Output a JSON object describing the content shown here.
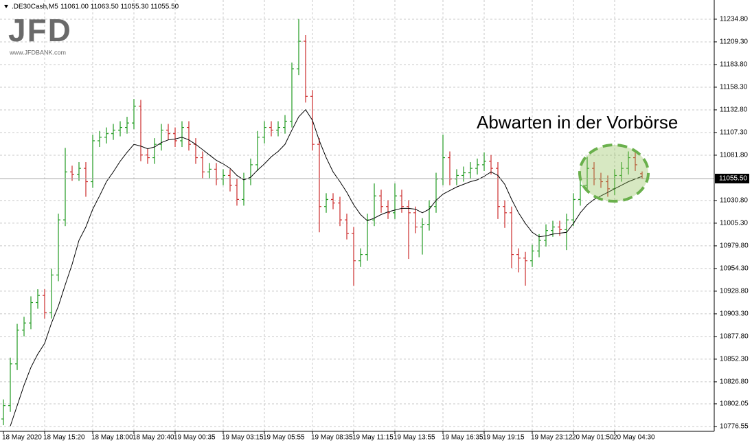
{
  "chart_data": {
    "type": "ohlc",
    "symbol": ".DE30Cash,M5",
    "ohlc_header": "11061.00 11063.50 11055.30 11055.50",
    "logo": "JFD",
    "logo_url": "www.JFDBANK.com",
    "annotation": "Abwarten in der Vorbörse",
    "categories": [
      "18 May 2020",
      null,
      null,
      null,
      null,
      null,
      "18 May 15:20",
      null,
      null,
      null,
      null,
      null,
      null,
      "18 May 18:00",
      null,
      null,
      null,
      null,
      null,
      "18 May 20:40",
      null,
      null,
      null,
      null,
      null,
      "19 May 00:35",
      null,
      null,
      null,
      null,
      null,
      null,
      "19 May 03:15",
      null,
      null,
      null,
      null,
      null,
      "19 May 05:55",
      null,
      null,
      null,
      null,
      null,
      null,
      "19 May 08:35",
      null,
      null,
      null,
      null,
      null,
      "19 May 11:15",
      null,
      null,
      null,
      null,
      null,
      "19 May 13:55",
      null,
      null,
      null,
      null,
      null,
      null,
      "19 May 16:35",
      null,
      null,
      null,
      null,
      null,
      "19 May 19:15",
      null,
      null,
      null,
      null,
      null,
      null,
      "19 May 23:12",
      null,
      null,
      null,
      null,
      null,
      "20 May 01:50",
      null,
      null,
      null,
      null,
      null,
      "20 May 04:30",
      null,
      null,
      null,
      null
    ],
    "open": [
      10785,
      10800,
      10847,
      10885,
      10893,
      10916,
      10924,
      10905,
      10947,
      11009,
      11063,
      11060,
      11067,
      11052,
      11098,
      11102,
      11106,
      11110,
      11113,
      11118,
      11137,
      11082,
      11079,
      11094,
      11110,
      11106,
      11098,
      11113,
      11094,
      11079,
      11063,
      11066,
      11055,
      11059,
      11048,
      11032,
      11055,
      11071,
      11102,
      11113,
      11110,
      11113,
      11120,
      11179,
      11210,
      11148,
      11094,
      11024,
      11032,
      11028,
      11009,
      10994,
      10963,
      10970,
      11009,
      11036,
      11024,
      11017,
      11036,
      11024,
      11017,
      11001,
      11004,
      11024,
      11055,
      11079,
      11055,
      11059,
      11062,
      11067,
      11071,
      11075,
      11067,
      11024,
      11017,
      10970,
      10966,
      10963,
      10974,
      10986,
      10997,
      11001,
      10998,
      11009,
      11032,
      11048,
      11067,
      11055,
      11052,
      11044,
      11059,
      11067,
      11079,
      11061
    ],
    "high": [
      10807,
      10854,
      10892,
      10900,
      10923,
      10931,
      10931,
      10954,
      11016,
      11090,
      11070,
      11074,
      11074,
      11105,
      11109,
      11113,
      11117,
      11120,
      11125,
      11145,
      11144,
      11089,
      11101,
      11117,
      11117,
      11113,
      11120,
      11120,
      11101,
      11086,
      11073,
      11073,
      11066,
      11066,
      11055,
      11062,
      11078,
      11109,
      11120,
      11120,
      11120,
      11127,
      11186,
      11235,
      11217,
      11155,
      11101,
      11039,
      11039,
      11035,
      11016,
      11001,
      10977,
      11016,
      11050,
      11043,
      11031,
      11050,
      11043,
      11031,
      11024,
      11011,
      11031,
      11062,
      11105,
      11086,
      11066,
      11069,
      11074,
      11078,
      11085,
      11082,
      11074,
      11031,
      11024,
      10977,
      10973,
      10981,
      10993,
      11004,
      11008,
      11008,
      11016,
      11039,
      11055,
      11080,
      11074,
      11062,
      11059,
      11066,
      11074,
      11086,
      11086,
      11063.5
    ],
    "low": [
      10778,
      10793,
      10840,
      10878,
      10886,
      10909,
      10898,
      10898,
      10940,
      11002,
      11053,
      11053,
      11035,
      11045,
      11091,
      11095,
      11099,
      11103,
      11106,
      11111,
      11075,
      11072,
      11072,
      11087,
      11099,
      11091,
      11091,
      11087,
      11072,
      11056,
      11056,
      11048,
      11048,
      11041,
      11025,
      11025,
      11048,
      11064,
      11095,
      11103,
      11103,
      11106,
      11113,
      11172,
      11141,
      11087,
      10995,
      11017,
      11021,
      11002,
      10987,
      10935,
      10956,
      10963,
      11002,
      11017,
      11010,
      11010,
      11017,
      10965,
      10994,
      10970,
      10997,
      11017,
      11048,
      11048,
      11048,
      11052,
      11055,
      11060,
      11064,
      11060,
      11010,
      11000,
      10955,
      10950,
      10935,
      10956,
      10967,
      10979,
      10990,
      10991,
      10975,
      11002,
      11025,
      11041,
      11048,
      11045,
      11035,
      11037,
      11052,
      11060,
      11064,
      11055.3
    ],
    "close": [
      10800,
      10847,
      10885,
      10893,
      10916,
      10924,
      10905,
      10947,
      11009,
      11063,
      11060,
      11067,
      11052,
      11098,
      11102,
      11106,
      11110,
      11113,
      11118,
      11137,
      11082,
      11079,
      11094,
      11110,
      11106,
      11098,
      11113,
      11094,
      11079,
      11063,
      11066,
      11055,
      11059,
      11048,
      11032,
      11055,
      11071,
      11102,
      11113,
      11110,
      11113,
      11120,
      11179,
      11210,
      11148,
      11094,
      11024,
      11032,
      11028,
      11009,
      10994,
      10963,
      10970,
      11009,
      11036,
      11024,
      11017,
      11036,
      11024,
      11017,
      11001,
      11004,
      11024,
      11055,
      11079,
      11055,
      11059,
      11062,
      11067,
      11071,
      11075,
      11067,
      11024,
      11017,
      10970,
      10966,
      10963,
      10974,
      10986,
      10997,
      11001,
      10998,
      11009,
      11032,
      11048,
      11067,
      11055,
      11052,
      11044,
      11059,
      11067,
      11079,
      11071,
      11055.5
    ],
    "up_color": "#1f9a1f",
    "down_color": "#cc2a2a",
    "ma": {
      "color": "#000000",
      "values": [
        null,
        10777,
        10800,
        10823,
        10843,
        10858,
        10870,
        10893,
        10912,
        10936,
        10959,
        10986,
        11001,
        11021,
        11036,
        11052,
        11063,
        11075,
        11085,
        11094,
        11092,
        11089,
        11091,
        11096,
        11099,
        11100,
        11102,
        11099,
        11094,
        11088,
        11082,
        11076,
        11072,
        11067,
        11059,
        11054,
        11057,
        11065,
        11072,
        11080,
        11086,
        11094,
        11110,
        11125,
        11133,
        11121,
        11098,
        11079,
        11063,
        11052,
        11040,
        11026,
        11015,
        11008,
        11011,
        11015,
        11018,
        11020,
        11022,
        11022,
        11021,
        11017,
        11021,
        11031,
        11038,
        11042,
        11046,
        11049,
        11052,
        11054,
        11058,
        11063,
        11059,
        11049,
        11032,
        11017,
        11005,
        10995,
        10990,
        10991,
        10993,
        10994,
        10995,
        11005,
        11017,
        11026,
        11032,
        11036,
        11040,
        11044,
        11048,
        11052,
        11055,
        11058
      ]
    },
    "current_price": {
      "value": 11055.5,
      "label": "11055.50"
    },
    "ylim": [
      10771.1,
      11256.4
    ],
    "yticks": [
      {
        "value": 11234.8,
        "label": "11234.80"
      },
      {
        "value": 11209.3,
        "label": "11209.30"
      },
      {
        "value": 11183.8,
        "label": "11183.80"
      },
      {
        "value": 11158.3,
        "label": "11158.30"
      },
      {
        "value": 11132.8,
        "label": "11132.80"
      },
      {
        "value": 11107.3,
        "label": "11107.30"
      },
      {
        "value": 11081.8,
        "label": "11081.80"
      },
      {
        "value": 11030.8,
        "label": "11030.80"
      },
      {
        "value": 11005.3,
        "label": "11005.30"
      },
      {
        "value": 10979.8,
        "label": "10979.80"
      },
      {
        "value": 10954.3,
        "label": "10954.30"
      },
      {
        "value": 10928.8,
        "label": "10928.80"
      },
      {
        "value": 10903.3,
        "label": "10903.30"
      },
      {
        "value": 10877.8,
        "label": "10877.80"
      },
      {
        "value": 10852.3,
        "label": "10852.30"
      },
      {
        "value": 10826.8,
        "label": "10826.80"
      },
      {
        "value": 10802.05,
        "label": "10802.05"
      },
      {
        "value": 10776.55,
        "label": "10776.55"
      }
    ],
    "grid": true
  }
}
